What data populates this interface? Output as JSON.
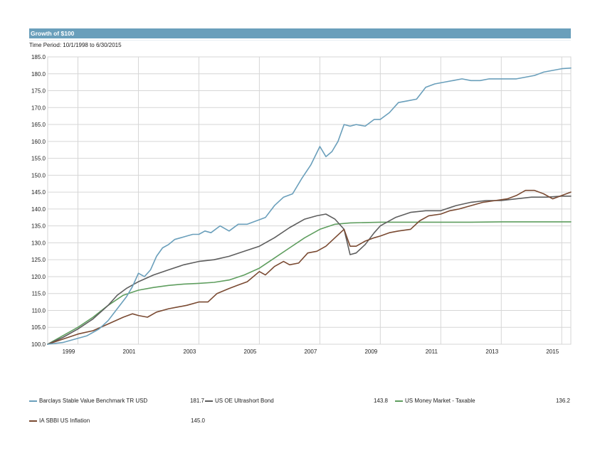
{
  "header": {
    "title": "Growth of $100",
    "subtitle": "Time Period: 10/1/1998 to 6/30/2015"
  },
  "colors": {
    "title_bar": "#6a9fbb",
    "grid": "#d6d6d6"
  },
  "chart_data": {
    "type": "line",
    "title": "Growth of $100",
    "subtitle": "Time Period: 10/1/1998 to 6/30/2015",
    "xlabel": "",
    "ylabel": "",
    "xlim": [
      1998.0,
      2015.3
    ],
    "ylim": [
      100,
      185
    ],
    "grid": true,
    "legend_position": "bottom",
    "x_ticks": [
      1999,
      2001,
      2003,
      2005,
      2007,
      2009,
      2011,
      2013,
      2015
    ],
    "y_ticks": [
      100.0,
      105.0,
      110.0,
      115.0,
      120.0,
      125.0,
      130.0,
      135.0,
      140.0,
      145.0,
      150.0,
      155.0,
      160.0,
      165.0,
      170.0,
      175.0,
      180.0,
      185.0
    ],
    "series": [
      {
        "name": "Barclays Stable Value Benchmark TR USD",
        "color": "#6a9fbb",
        "final_value": "181.7",
        "x": [
          1998.0,
          1998.5,
          1998.9,
          1999.3,
          1999.7,
          2000.0,
          2000.3,
          2000.6,
          2000.8,
          2001.0,
          2001.2,
          2001.4,
          2001.6,
          2001.8,
          2002.0,
          2002.2,
          2002.4,
          2002.6,
          2002.8,
          2003.0,
          2003.2,
          2003.4,
          2003.7,
          2004.0,
          2004.3,
          2004.6,
          2004.9,
          2005.2,
          2005.5,
          2005.8,
          2006.1,
          2006.4,
          2006.7,
          2007.0,
          2007.2,
          2007.4,
          2007.6,
          2007.8,
          2008.0,
          2008.2,
          2008.5,
          2008.8,
          2009.0,
          2009.3,
          2009.6,
          2009.9,
          2010.2,
          2010.5,
          2010.8,
          2011.1,
          2011.4,
          2011.7,
          2012.0,
          2012.3,
          2012.6,
          2012.9,
          2013.2,
          2013.5,
          2013.8,
          2014.1,
          2014.4,
          2014.7,
          2015.0,
          2015.3
        ],
        "y": [
          100.0,
          100.5,
          101.5,
          102.5,
          104.5,
          107.0,
          110.5,
          114.0,
          117.0,
          121.0,
          120.0,
          122.0,
          126.0,
          128.5,
          129.5,
          131.0,
          131.5,
          132.0,
          132.5,
          132.5,
          133.5,
          133.0,
          135.0,
          133.5,
          135.5,
          135.5,
          136.5,
          137.5,
          141.0,
          143.5,
          144.5,
          149.0,
          153.0,
          158.5,
          155.5,
          157.0,
          160.0,
          165.0,
          164.5,
          165.0,
          164.5,
          166.5,
          166.5,
          168.5,
          171.5,
          172.0,
          172.5,
          176.0,
          177.0,
          177.5,
          178.0,
          178.5,
          178.0,
          178.0,
          178.5,
          178.5,
          178.5,
          178.5,
          179.0,
          179.5,
          180.5,
          181.0,
          181.5,
          181.7
        ]
      },
      {
        "name": "US OE Ultrashort Bond",
        "color": "#5e5e5e",
        "final_value": "143.8",
        "x": [
          1998.0,
          1998.5,
          1999.0,
          1999.5,
          2000.0,
          2000.3,
          2000.6,
          2001.0,
          2001.5,
          2002.0,
          2002.5,
          2003.0,
          2003.5,
          2004.0,
          2004.5,
          2005.0,
          2005.5,
          2006.0,
          2006.5,
          2006.9,
          2007.2,
          2007.5,
          2007.8,
          2008.0,
          2008.2,
          2008.5,
          2008.8,
          2009.0,
          2009.5,
          2010.0,
          2010.5,
          2011.0,
          2011.5,
          2012.0,
          2012.5,
          2013.0,
          2013.5,
          2014.0,
          2014.5,
          2015.0,
          2015.3
        ],
        "y": [
          100.0,
          102.0,
          104.5,
          107.5,
          111.5,
          114.5,
          116.5,
          118.5,
          120.5,
          122.0,
          123.5,
          124.5,
          125.0,
          126.0,
          127.5,
          129.0,
          131.5,
          134.5,
          137.0,
          138.0,
          138.5,
          137.0,
          134.0,
          126.5,
          127.0,
          129.5,
          133.0,
          135.0,
          137.5,
          139.0,
          139.5,
          139.5,
          141.0,
          142.0,
          142.5,
          142.5,
          143.0,
          143.5,
          143.5,
          143.8,
          143.8
        ]
      },
      {
        "name": "US Money Market - Taxable",
        "color": "#5f9e5f",
        "final_value": "136.2",
        "x": [
          1998.0,
          1998.5,
          1999.0,
          1999.5,
          2000.0,
          2000.5,
          2001.0,
          2001.5,
          2002.0,
          2002.5,
          2003.0,
          2003.5,
          2004.0,
          2004.5,
          2005.0,
          2005.5,
          2006.0,
          2006.5,
          2007.0,
          2007.5,
          2008.0,
          2008.5,
          2009.0,
          2010.0,
          2011.0,
          2012.0,
          2013.0,
          2014.0,
          2015.0,
          2015.3
        ],
        "y": [
          100.0,
          102.5,
          105.0,
          108.0,
          111.5,
          114.5,
          116.0,
          116.8,
          117.4,
          117.8,
          118.0,
          118.3,
          119.0,
          120.5,
          122.5,
          125.5,
          128.5,
          131.5,
          134.0,
          135.5,
          135.9,
          136.0,
          136.1,
          136.1,
          136.1,
          136.1,
          136.2,
          136.2,
          136.2,
          136.2
        ]
      },
      {
        "name": "IA SBBI US Inflation",
        "color": "#7a4a32",
        "final_value": "145.0",
        "x": [
          1998.0,
          1998.5,
          1999.0,
          1999.5,
          2000.0,
          2000.5,
          2000.8,
          2001.0,
          2001.3,
          2001.6,
          2002.0,
          2002.3,
          2002.6,
          2003.0,
          2003.3,
          2003.6,
          2004.0,
          2004.3,
          2004.6,
          2005.0,
          2005.2,
          2005.5,
          2005.8,
          2006.0,
          2006.3,
          2006.6,
          2006.9,
          2007.2,
          2007.5,
          2007.8,
          2008.0,
          2008.2,
          2008.5,
          2008.8,
          2009.0,
          2009.3,
          2009.6,
          2010.0,
          2010.3,
          2010.6,
          2011.0,
          2011.3,
          2011.6,
          2012.0,
          2012.4,
          2012.8,
          2013.2,
          2013.5,
          2013.8,
          2014.1,
          2014.4,
          2014.7,
          2015.0,
          2015.3
        ],
        "y": [
          100.0,
          101.5,
          103.0,
          104.0,
          106.0,
          108.0,
          109.0,
          108.5,
          108.0,
          109.5,
          110.5,
          111.0,
          111.5,
          112.5,
          112.5,
          115.0,
          116.5,
          117.5,
          118.5,
          121.5,
          120.5,
          123.0,
          124.5,
          123.5,
          124.0,
          127.0,
          127.5,
          129.0,
          131.5,
          134.0,
          129.0,
          129.0,
          130.5,
          131.5,
          132.0,
          133.0,
          133.5,
          134.0,
          136.5,
          138.0,
          138.5,
          139.5,
          140.0,
          141.0,
          142.0,
          142.5,
          143.0,
          144.0,
          145.5,
          145.5,
          144.5,
          143.0,
          144.0,
          145.0
        ]
      }
    ]
  }
}
